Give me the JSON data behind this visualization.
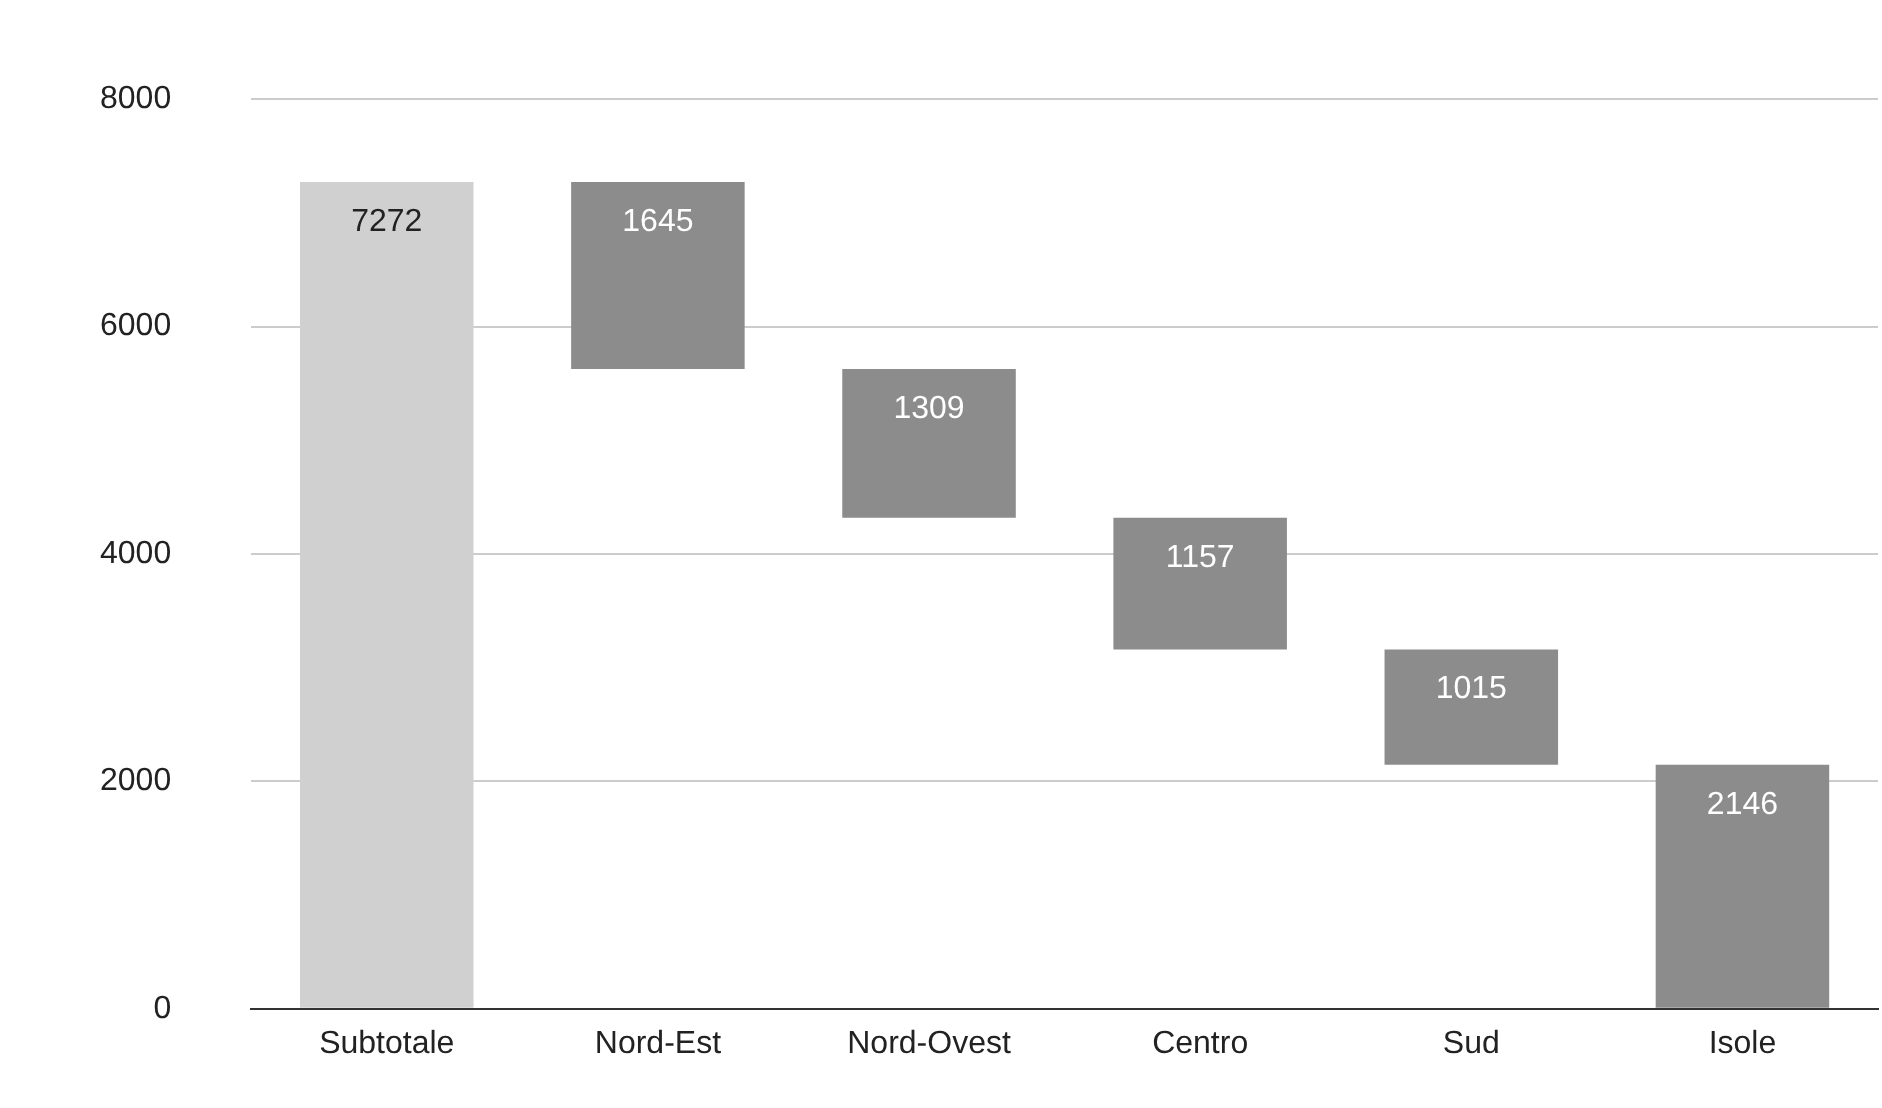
{
  "chart_data": {
    "type": "bar",
    "categories": [
      "Subtotale",
      "Nord-Est",
      "Nord-Ovest",
      "Centro",
      "Sud",
      "Isole"
    ],
    "values": [
      7272,
      1645,
      1309,
      1157,
      1015,
      2146
    ],
    "base": [
      0,
      5627,
      4318,
      3161,
      2146,
      0
    ],
    "colors": [
      "#d0d0d0",
      "#8c8c8c",
      "#8c8c8c",
      "#8c8c8c",
      "#8c8c8c",
      "#8c8c8c"
    ],
    "ylim": [
      0,
      8000
    ],
    "yticks": [
      0,
      2000,
      4000,
      6000,
      8000
    ],
    "grid": "y",
    "legend": false,
    "data_labels": true
  }
}
